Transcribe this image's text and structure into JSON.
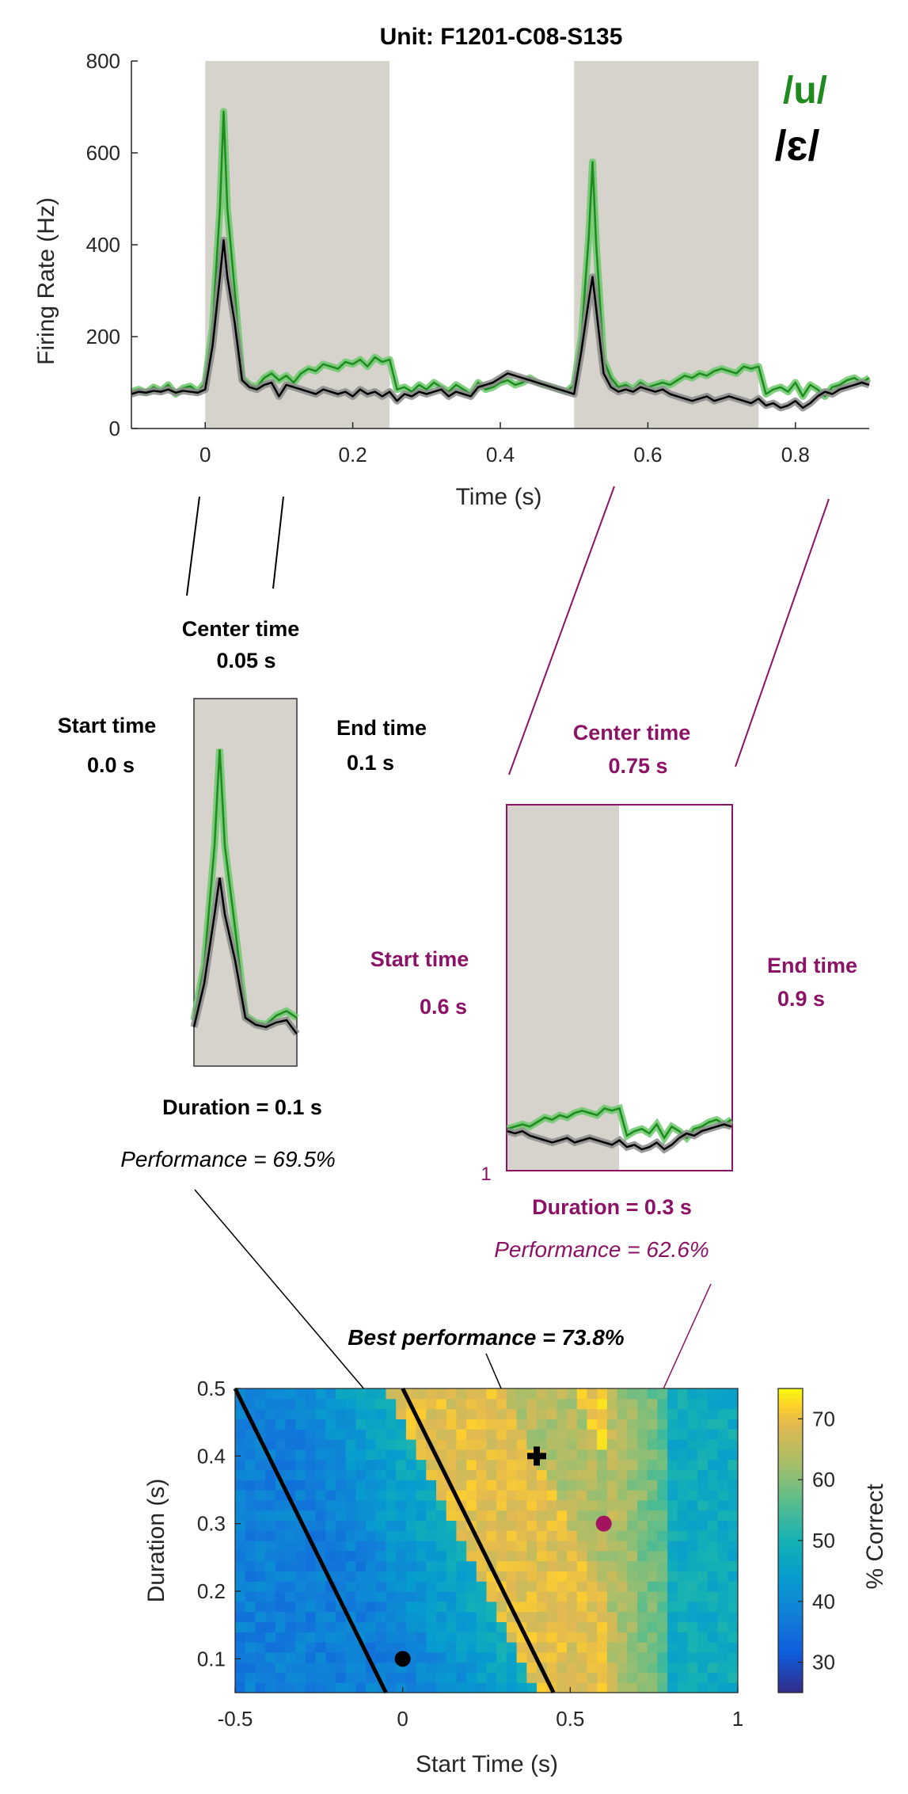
{
  "chart_data": [
    {
      "type": "line",
      "title": "Unit: F1201-C08-S135",
      "xlabel": "Time (s)",
      "ylabel": "Firing Rate (Hz)",
      "xlim": [
        -0.1,
        0.9
      ],
      "ylim": [
        0,
        800
      ],
      "x_ticks": [
        0,
        0.2,
        0.4,
        0.6,
        0.8
      ],
      "x_tick_labels": [
        "0",
        "0.2",
        "0.4",
        "0.6",
        "0.8"
      ],
      "y_ticks": [
        0,
        200,
        400,
        600,
        800
      ],
      "y_tick_labels": [
        "0",
        "200",
        "400",
        "600",
        "800"
      ],
      "shaded_intervals": [
        [
          0,
          0.25
        ],
        [
          0.5,
          0.75
        ]
      ],
      "legend": [
        {
          "label": "/u/",
          "color": "#1f8a1f"
        },
        {
          "label": "/ɛ/",
          "color": "#000000"
        }
      ],
      "series": [
        {
          "name": "/u/",
          "color": "#1f8a1f",
          "x": [
            -0.1,
            -0.09,
            -0.08,
            -0.07,
            -0.06,
            -0.05,
            -0.04,
            -0.03,
            -0.02,
            -0.01,
            0,
            0.01,
            0.02,
            0.025,
            0.03,
            0.04,
            0.05,
            0.06,
            0.07,
            0.08,
            0.09,
            0.1,
            0.11,
            0.12,
            0.13,
            0.14,
            0.15,
            0.16,
            0.17,
            0.18,
            0.19,
            0.2,
            0.21,
            0.22,
            0.23,
            0.24,
            0.25,
            0.26,
            0.27,
            0.28,
            0.29,
            0.3,
            0.31,
            0.32,
            0.33,
            0.34,
            0.35,
            0.36,
            0.37,
            0.38,
            0.39,
            0.4,
            0.41,
            0.42,
            0.43,
            0.44,
            0.45,
            0.46,
            0.47,
            0.48,
            0.49,
            0.5,
            0.51,
            0.52,
            0.525,
            0.53,
            0.54,
            0.55,
            0.56,
            0.57,
            0.58,
            0.59,
            0.6,
            0.61,
            0.62,
            0.63,
            0.64,
            0.65,
            0.66,
            0.67,
            0.68,
            0.69,
            0.7,
            0.71,
            0.72,
            0.73,
            0.74,
            0.75,
            0.76,
            0.77,
            0.78,
            0.79,
            0.8,
            0.81,
            0.82,
            0.83,
            0.84,
            0.85,
            0.86,
            0.87,
            0.88,
            0.89,
            0.9
          ],
          "y": [
            80,
            85,
            78,
            90,
            82,
            95,
            75,
            88,
            92,
            80,
            100,
            220,
            480,
            690,
            480,
            300,
            110,
            95,
            90,
            110,
            120,
            105,
            115,
            100,
            120,
            130,
            125,
            140,
            135,
            130,
            145,
            140,
            150,
            135,
            155,
            145,
            150,
            85,
            90,
            80,
            95,
            85,
            100,
            90,
            80,
            95,
            85,
            75,
            100,
            85,
            90,
            100,
            105,
            95,
            100,
            110,
            100,
            95,
            90,
            85,
            80,
            95,
            200,
            420,
            580,
            400,
            150,
            110,
            90,
            95,
            85,
            100,
            90,
            95,
            100,
            95,
            105,
            115,
            110,
            120,
            115,
            125,
            130,
            125,
            120,
            135,
            130,
            135,
            75,
            85,
            90,
            80,
            100,
            70,
            95,
            85,
            70,
            90,
            95,
            105,
            110,
            100,
            110
          ]
        },
        {
          "name": "/ɛ/",
          "color": "#000000",
          "x": [
            -0.1,
            -0.09,
            -0.08,
            -0.07,
            -0.06,
            -0.05,
            -0.04,
            -0.03,
            -0.02,
            -0.01,
            0,
            0.01,
            0.02,
            0.025,
            0.03,
            0.04,
            0.05,
            0.06,
            0.07,
            0.08,
            0.09,
            0.1,
            0.11,
            0.12,
            0.13,
            0.14,
            0.15,
            0.16,
            0.17,
            0.18,
            0.19,
            0.2,
            0.21,
            0.22,
            0.23,
            0.24,
            0.25,
            0.26,
            0.27,
            0.28,
            0.29,
            0.3,
            0.31,
            0.32,
            0.33,
            0.34,
            0.35,
            0.36,
            0.37,
            0.38,
            0.39,
            0.4,
            0.41,
            0.42,
            0.43,
            0.44,
            0.45,
            0.46,
            0.47,
            0.48,
            0.49,
            0.5,
            0.51,
            0.52,
            0.525,
            0.53,
            0.54,
            0.55,
            0.56,
            0.57,
            0.58,
            0.59,
            0.6,
            0.61,
            0.62,
            0.63,
            0.64,
            0.65,
            0.66,
            0.67,
            0.68,
            0.69,
            0.7,
            0.71,
            0.72,
            0.73,
            0.74,
            0.75,
            0.76,
            0.77,
            0.78,
            0.79,
            0.8,
            0.81,
            0.82,
            0.83,
            0.84,
            0.85,
            0.86,
            0.87,
            0.88,
            0.89,
            0.9
          ],
          "y": [
            75,
            80,
            78,
            82,
            80,
            85,
            78,
            82,
            80,
            78,
            85,
            180,
            330,
            410,
            330,
            230,
            105,
            90,
            85,
            95,
            100,
            70,
            95,
            90,
            85,
            80,
            75,
            85,
            80,
            75,
            80,
            70,
            85,
            75,
            80,
            70,
            80,
            60,
            75,
            70,
            80,
            75,
            80,
            85,
            70,
            80,
            75,
            70,
            90,
            95,
            100,
            110,
            120,
            115,
            110,
            105,
            100,
            95,
            90,
            85,
            80,
            75,
            170,
            280,
            330,
            260,
            120,
            90,
            80,
            85,
            80,
            90,
            85,
            80,
            85,
            75,
            70,
            65,
            60,
            65,
            70,
            60,
            65,
            70,
            65,
            60,
            55,
            65,
            50,
            55,
            45,
            50,
            60,
            45,
            55,
            70,
            80,
            75,
            85,
            90,
            95,
            100,
            95
          ]
        }
      ]
    },
    {
      "type": "line",
      "title": "",
      "annotation_top": [
        "Center time",
        "0.05 s"
      ],
      "annotation_left": [
        "Start time",
        "0.0 s"
      ],
      "annotation_right": [
        "End time",
        "0.1 s"
      ],
      "annotation_bottom": [
        "Duration = 0.1 s",
        "Performance = 69.5%"
      ],
      "xlim": [
        0,
        0.1
      ],
      "ylim": [
        0,
        800
      ],
      "shaded_intervals": [
        [
          0,
          0.1
        ]
      ]
    },
    {
      "type": "line",
      "title": "",
      "annotation_top": [
        "Center time",
        "0.75 s"
      ],
      "annotation_left": [
        "Start time",
        "0.6 s"
      ],
      "annotation_right": [
        "End time",
        "0.9 s"
      ],
      "annotation_bottom": [
        "Duration = 0.3 s",
        "Performance = 62.6%"
      ],
      "corner_label": "1",
      "xlim": [
        0.6,
        0.9
      ],
      "ylim": [
        0,
        800
      ],
      "shaded_intervals": [
        [
          0.6,
          0.75
        ]
      ]
    },
    {
      "type": "heatmap",
      "title": "",
      "xlabel": "Start Time (s)",
      "ylabel": "Duration (s)",
      "xlim": [
        -0.5,
        1
      ],
      "ylim": [
        0.05,
        0.5
      ],
      "x_ticks": [
        -0.5,
        0,
        0.5,
        1
      ],
      "x_tick_labels": [
        "-0.5",
        "0",
        "0.5",
        "1"
      ],
      "y_ticks": [
        0.1,
        0.2,
        0.3,
        0.4,
        0.5
      ],
      "y_tick_labels": [
        "0.1",
        "0.2",
        "0.3",
        "0.4",
        "0.5"
      ],
      "colorbar_label": "% Correct",
      "colorbar_range": [
        25,
        75
      ],
      "colorbar_ticks": [
        30,
        40,
        50,
        60,
        70
      ],
      "colorbar_tick_labels": [
        "30",
        "40",
        "50",
        "60",
        "70"
      ],
      "annotation": "Best performance = 73.8%",
      "markers": [
        {
          "type": "plus",
          "x": 0.4,
          "y": 0.4,
          "color": "#000000"
        },
        {
          "type": "circle",
          "x": 0.0,
          "y": 0.1,
          "color": "#000000"
        },
        {
          "type": "circle",
          "x": 0.6,
          "y": 0.3,
          "color": "#a3145e"
        }
      ],
      "diagonal_lines": [
        {
          "from": [
            -0.5,
            0.5
          ],
          "to": [
            -0.05,
            0.05
          ]
        },
        {
          "from": [
            0,
            0.5
          ],
          "to": [
            0.45,
            0.05
          ]
        }
      ]
    }
  ]
}
